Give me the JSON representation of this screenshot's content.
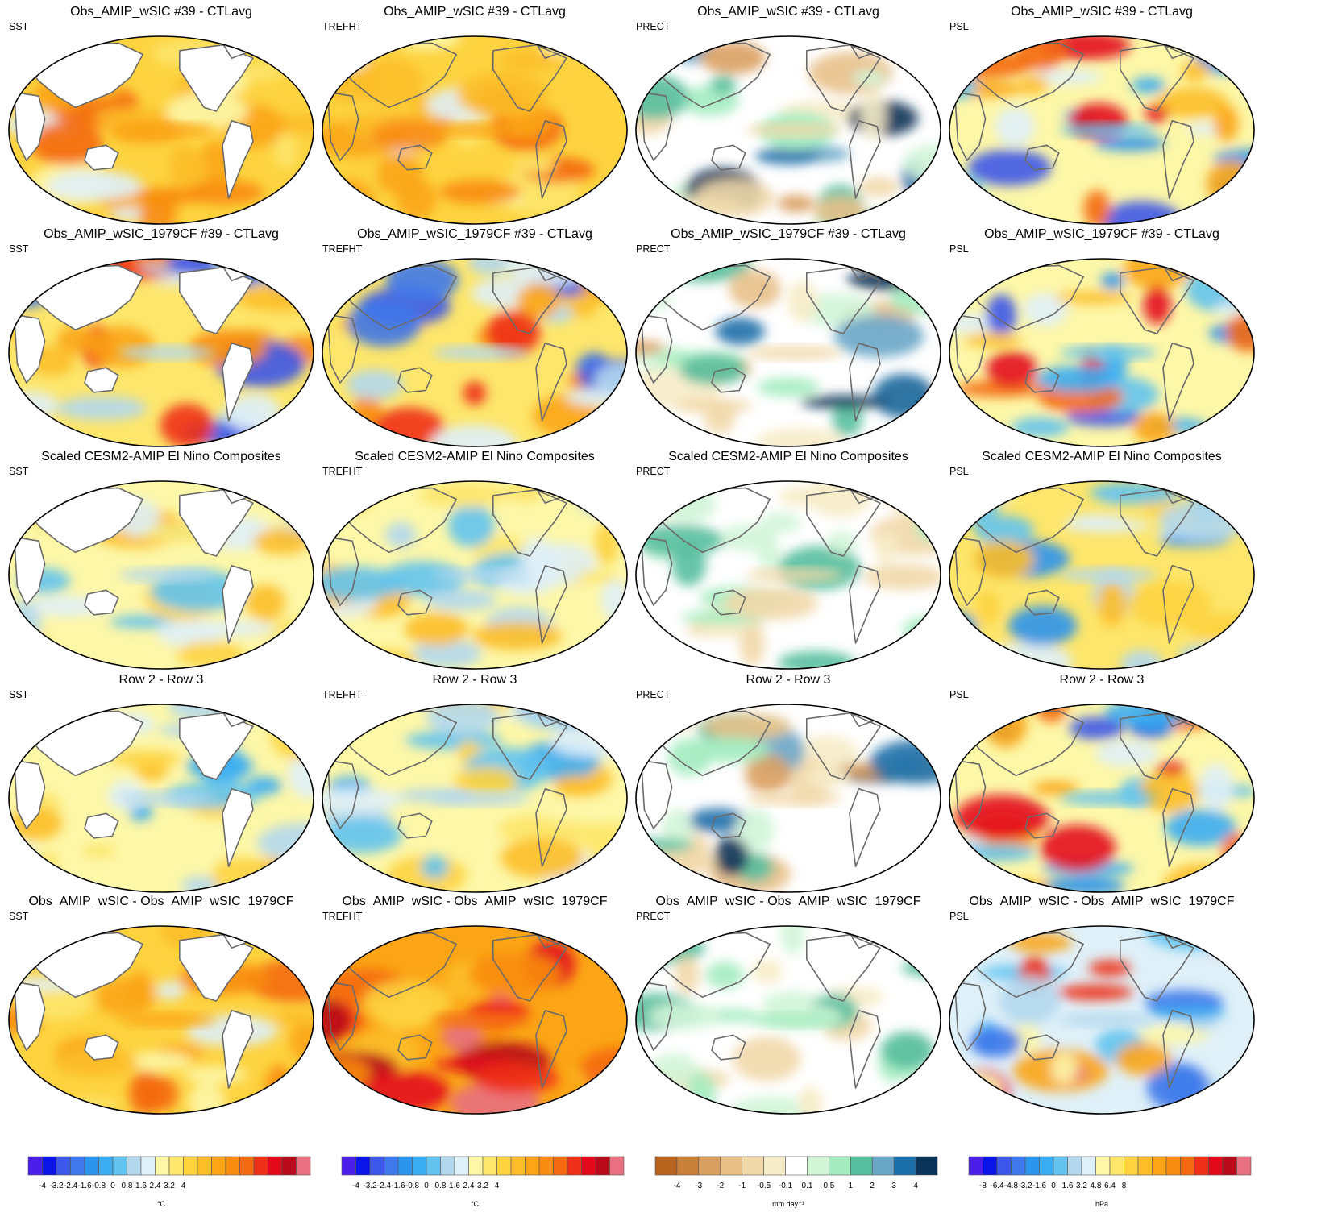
{
  "colors": {
    "temp": [
      "#4b1fe8",
      "#0a14e8",
      "#3d58e8",
      "#3f78ea",
      "#2b94ec",
      "#3aadf2",
      "#63c3ee",
      "#b3d8ee",
      "#dff0f8",
      "#fdf7a8",
      "#fde66b",
      "#fdd340",
      "#fcbe28",
      "#fba516",
      "#f88c10",
      "#f46a12",
      "#ef3018",
      "#e3081c",
      "#b80a1a",
      "#e87080"
    ],
    "precip": [
      "#b8641e",
      "#c98038",
      "#daa060",
      "#e8c088",
      "#f1d8a8",
      "#f7ecc8",
      "#ffffff",
      "#d2f5d8",
      "#a4ecc0",
      "#58bf9e",
      "#6aa6c6",
      "#1c70aa",
      "#0a3358"
    ]
  },
  "colorbars": [
    {
      "ticks": [
        "-4",
        "-3.2",
        "-2.4",
        "-1.6",
        "-0.8",
        "0",
        "0.8",
        "1.6",
        "2.4",
        "3.2",
        "4"
      ],
      "unit": "°C"
    },
    {
      "ticks": [
        "-4",
        "-3.2",
        "-2.4",
        "-1.6",
        "-0.8",
        "0",
        "0.8",
        "1.6",
        "2.4",
        "3.2",
        "4"
      ],
      "unit": "°C"
    },
    {
      "ticks": [
        "-4",
        "-3",
        "-2",
        "-1",
        "-0.5",
        "-0.1",
        "0.1",
        "0.5",
        "1",
        "2",
        "3",
        "4"
      ],
      "unit": "mm day⁻¹"
    },
    {
      "ticks": [
        "-8",
        "-6.4",
        "-4.8",
        "-3.2",
        "-1.6",
        "0",
        "1.6",
        "3.2",
        "4.8",
        "6.4",
        "8"
      ],
      "unit": "hPa"
    }
  ],
  "rows": [
    {
      "title": "Obs_AMIP_wSIC #39 - CTLavg",
      "panels": [
        {
          "var": "SST",
          "scheme": "temp",
          "land_mask": true,
          "fill": "warm"
        },
        {
          "var": "TREFHT",
          "scheme": "temp",
          "land_mask": false,
          "fill": "warm"
        },
        {
          "var": "PRECT",
          "scheme": "precip",
          "land_mask": false,
          "fill": "precip"
        },
        {
          "var": "PSL",
          "scheme": "temp",
          "land_mask": false,
          "fill": "psl"
        }
      ]
    },
    {
      "title": "Obs_AMIP_wSIC_1979CF #39 - CTLavg",
      "panels": [
        {
          "var": "SST",
          "scheme": "temp",
          "land_mask": true,
          "fill": "mixed"
        },
        {
          "var": "TREFHT",
          "scheme": "temp",
          "land_mask": false,
          "fill": "mixed"
        },
        {
          "var": "PRECT",
          "scheme": "precip",
          "land_mask": false,
          "fill": "precip"
        },
        {
          "var": "PSL",
          "scheme": "temp",
          "land_mask": false,
          "fill": "psl"
        }
      ]
    },
    {
      "title": "Scaled CESM2-AMIP El Nino Composites",
      "panels": [
        {
          "var": "SST",
          "scheme": "temp",
          "land_mask": true,
          "fill": "elnino"
        },
        {
          "var": "TREFHT",
          "scheme": "temp",
          "land_mask": false,
          "fill": "elnino"
        },
        {
          "var": "PRECT",
          "scheme": "precip",
          "land_mask": false,
          "fill": "precip_enso"
        },
        {
          "var": "PSL",
          "scheme": "temp",
          "land_mask": false,
          "fill": "psl_enso"
        }
      ]
    },
    {
      "title": "Row 2 - Row 3",
      "panels": [
        {
          "var": "SST",
          "scheme": "temp",
          "land_mask": true,
          "fill": "cool"
        },
        {
          "var": "TREFHT",
          "scheme": "temp",
          "land_mask": false,
          "fill": "cool"
        },
        {
          "var": "PRECT",
          "scheme": "precip",
          "land_mask": false,
          "fill": "precip"
        },
        {
          "var": "PSL",
          "scheme": "temp",
          "land_mask": false,
          "fill": "psl"
        }
      ]
    },
    {
      "title": "Obs_AMIP_wSIC - Obs_AMIP_wSIC_1979CF",
      "panels": [
        {
          "var": "SST",
          "scheme": "temp",
          "land_mask": true,
          "fill": "warm"
        },
        {
          "var": "TREFHT",
          "scheme": "temp",
          "land_mask": false,
          "fill": "hot"
        },
        {
          "var": "PRECT",
          "scheme": "precip",
          "land_mask": false,
          "fill": "precip_light"
        },
        {
          "var": "PSL",
          "scheme": "temp",
          "land_mask": false,
          "fill": "psl_blue"
        }
      ]
    }
  ]
}
